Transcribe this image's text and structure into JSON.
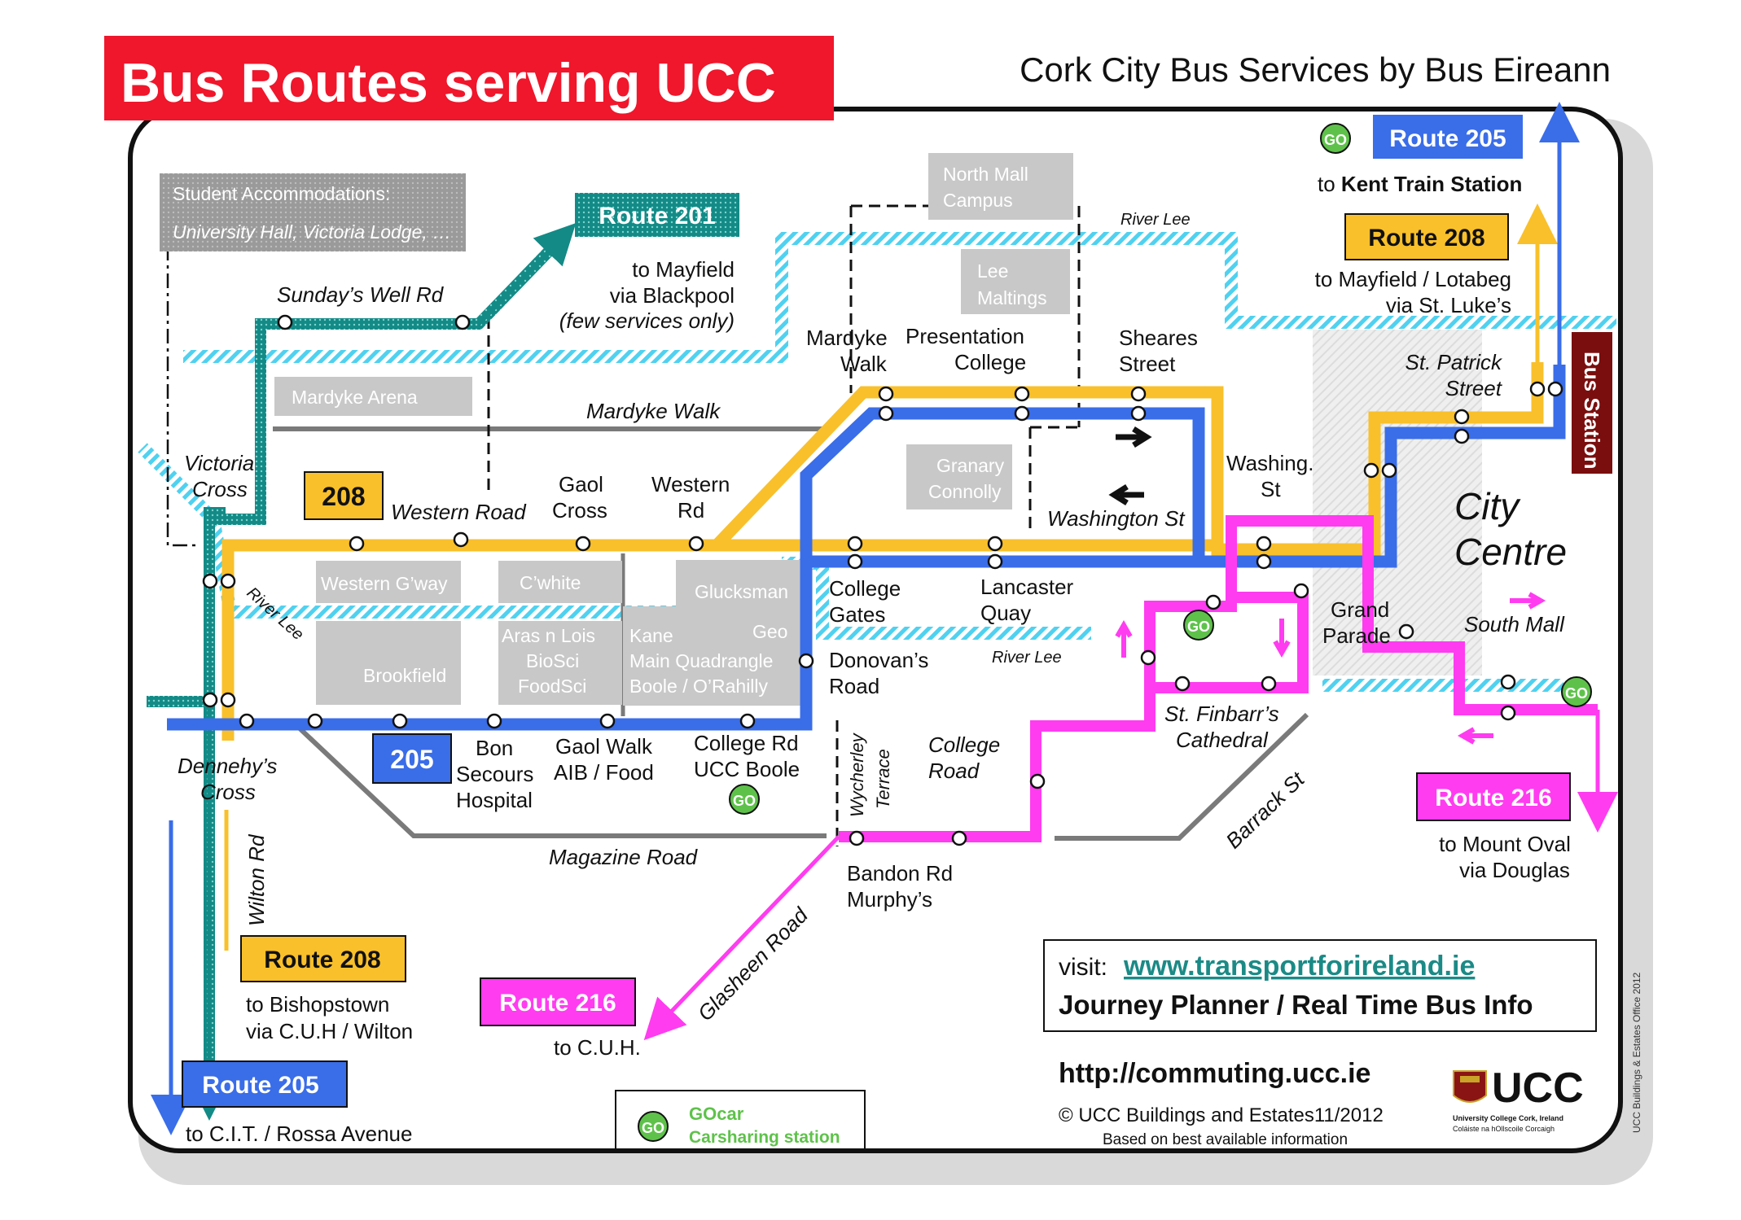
{
  "header": {
    "title": "Bus Routes serving UCC",
    "subtitle": "Cork City Bus Services by Bus Eireann"
  },
  "routes": {
    "r201": {
      "label": "Route 201",
      "dest1": "to Mayfield",
      "dest2": "via Blackpool",
      "dest3": "(few services only)"
    },
    "r205_top": {
      "label": "Route 205",
      "dest_prefix": "to ",
      "dest_bold": "Kent Train Station"
    },
    "r208_top": {
      "label": "Route 208",
      "dest1": "to Mayfield / Lotabeg",
      "dest2": "via St. Luke’s"
    },
    "r216_right": {
      "label": "Route 216",
      "dest1": "to Mount Oval",
      "dest2": "via Douglas"
    },
    "r208_bottom": {
      "label": "Route 208",
      "dest1": "to Bishopstown",
      "dest2": "via C.U.H / Wilton"
    },
    "r205_bottom": {
      "label": "Route 205",
      "dest1": "to C.I.T. / Rossa Avenue"
    },
    "r216_bottom": {
      "label": "Route 216",
      "dest1": "to C.U.H."
    },
    "badge208": "208",
    "badge205": "205"
  },
  "places": {
    "student_accom_1": "Student Accommodations:",
    "student_accom_2": "University Hall, Victoria Lodge, …",
    "sundays_well": "Sunday’s Well Rd",
    "mardyke_arena": "Mardyke Arena",
    "mardyke_walk_road": "Mardyke Walk",
    "victoria_cross_1": "Victoria",
    "victoria_cross_2": "Cross",
    "western_road": "Western Road",
    "gaol_cross_1": "Gaol",
    "gaol_cross_2": "Cross",
    "western_rd_1": "Western",
    "western_rd_2": "Rd",
    "north_mall_1": "North Mall",
    "north_mall_2": "Campus",
    "lee_maltings_1": "Lee",
    "lee_maltings_2": "Maltings",
    "river_lee_top": "River Lee",
    "mardyke_walk_1": "Mardyke",
    "mardyke_walk_2": "Walk",
    "presentation_1": "Presentation",
    "presentation_2": "College",
    "sheares_1": "Sheares",
    "sheares_2": "Street",
    "granary_1": "Granary",
    "granary_2": "Connolly",
    "washington_st": "Washington St",
    "washing_1": "Washing.",
    "washing_2": "St",
    "st_patrick_1": "St. Patrick",
    "st_patrick_2": "Street",
    "bus_station": "Bus Station",
    "city_centre_1": "City",
    "city_centre_2": "Centre",
    "grand_parade_1": "Grand",
    "grand_parade_2": "Parade",
    "south_mall": "South Mall",
    "western_gway": "Western G’way",
    "cwhite": "C’white",
    "glucksman": "Glucksman",
    "river_lee_left": "River Lee",
    "brookfield": "Brookfield",
    "aras_1": "Aras n Lois",
    "aras_2": "BioSci",
    "aras_3": "FoodSci",
    "kane": "Kane",
    "geo": "Geo",
    "main_quad": "Main Quadrangle",
    "boole": "Boole / O’Rahilly",
    "college_gates_1": "College",
    "college_gates_2": "Gates",
    "lancaster_1": "Lancaster",
    "lancaster_2": "Quay",
    "donovans_1": "Donovan’s",
    "donovans_2": "Road",
    "river_lee_mid": "River Lee",
    "st_finbarrs_1": "St. Finbarr’s",
    "st_finbarrs_2": "Cathedral",
    "dennehys_1": "Dennehy’s",
    "dennehys_2": "Cross",
    "bon_1": "Bon",
    "bon_2": "Secours",
    "bon_3": "Hospital",
    "gaol_walk_1": "Gaol Walk",
    "gaol_walk_2": "AIB / Food",
    "college_rd_1": "College Rd",
    "college_rd_2": "UCC Boole",
    "wycherley_1": "Wycherley",
    "wycherley_2": "Terrace",
    "college_road_1": "College",
    "college_road_2": "Road",
    "barrack_st": "Barrack St",
    "wilton_rd": "Wilton Rd",
    "magazine_road": "Magazine Road",
    "bandon_1": "Bandon Rd",
    "bandon_2": "Murphy’s",
    "glasheen": "Glasheen Road"
  },
  "info": {
    "visit_prefix": "visit: ",
    "visit_link": "www.transportforireland.ie",
    "journey": "Journey Planner / Real Time Bus Info",
    "commuting": "http://commuting.ucc.ie",
    "copyright": "© UCC  Buildings and Estates11/2012",
    "based_on": "Based on best available information",
    "gocar_1": "GOcar",
    "gocar_2": "Carsharing station",
    "go": "GO",
    "ucc_logo": "UCC",
    "ucc_logo_sub1": "University College Cork, Ireland",
    "ucc_logo_sub2": "Coláiste na hOllscoile Corcaigh",
    "side_credit": "UCC Buildings & Estates Office 2012"
  },
  "colors": {
    "red_header": "#f0162b",
    "teal": "#138a86",
    "yellow": "#f9c02b",
    "blue": "#3a6de8",
    "magenta": "#ff3cf0",
    "grey_box": "#c8c8c8",
    "river": "#4fd1f0",
    "bus_station": "#7a0e0e",
    "go_green": "#5ec24a",
    "link_teal": "#1b8a86"
  }
}
